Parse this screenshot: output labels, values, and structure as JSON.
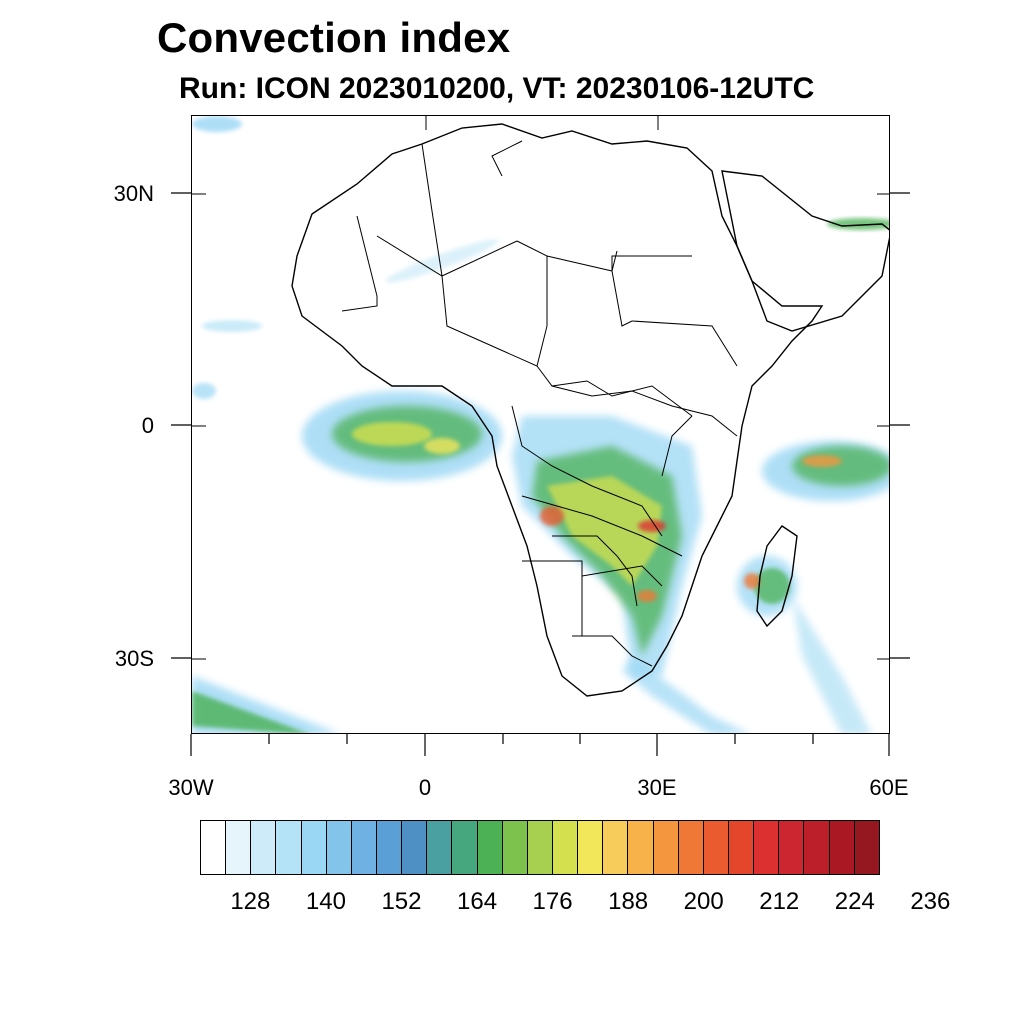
{
  "header": {
    "title": "Convection index",
    "subtitle": "Run: ICON 2023010200,  VT: 20230106-12UTC"
  },
  "axes": {
    "lat_labels": [
      "30N",
      "0",
      "30S"
    ],
    "lon_labels": [
      "30W",
      "0",
      "30E",
      "60E"
    ]
  },
  "colorbar": {
    "colors": [
      "#ffffff",
      "#e6f5fc",
      "#cdebf8",
      "#b4e2f6",
      "#9ad7f4",
      "#82c4ea",
      "#6eb1e2",
      "#5a9fd6",
      "#4e8fc4",
      "#4a9fa0",
      "#46a77e",
      "#4cb155",
      "#7ec24e",
      "#a8d050",
      "#d4e04e",
      "#f2e65a",
      "#f8cc5a",
      "#f8b24a",
      "#f4963e",
      "#f07836",
      "#ea5c30",
      "#e4462c",
      "#dc3030",
      "#cc2630",
      "#bc1e2a",
      "#aa1824",
      "#951820"
    ],
    "tick_labels": [
      "128",
      "140",
      "152",
      "164",
      "176",
      "188",
      "200",
      "212",
      "224",
      "236"
    ]
  }
}
